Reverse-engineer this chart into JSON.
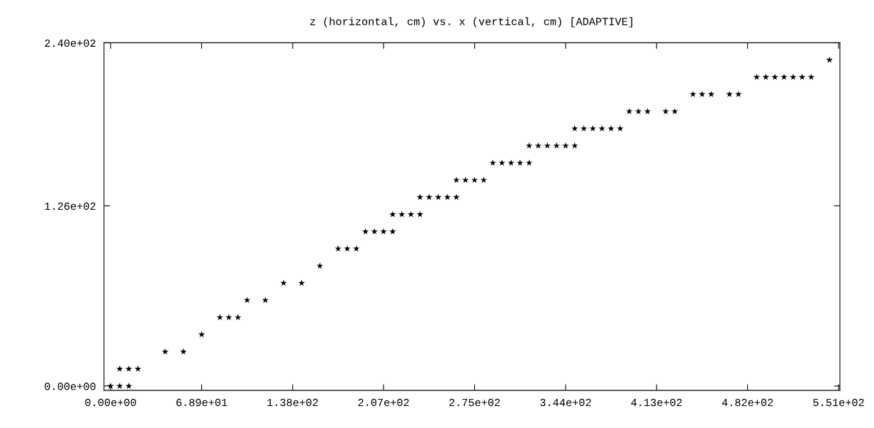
{
  "chart_data": {
    "type": "scatter",
    "title": "z (horizontal, cm) vs. x (vertical, cm) [ADAPTIVE]",
    "x": [
      0,
      6.9,
      13.8,
      6.9,
      13.8,
      20.7,
      41.3,
      55.1,
      68.9,
      82.7,
      89.5,
      96.4,
      103.3,
      117.1,
      130.9,
      144.6,
      158.4,
      172.2,
      179.1,
      186.0,
      192.9,
      199.7,
      206.6,
      213.5,
      213.5,
      220.4,
      227.3,
      234.2,
      234.2,
      241.1,
      248.0,
      254.9,
      261.7,
      261.7,
      268.6,
      275.5,
      282.4,
      289.3,
      296.2,
      303.1,
      309.9,
      316.8,
      316.8,
      323.7,
      330.6,
      337.5,
      344.4,
      351.3,
      351.3,
      358.2,
      365.0,
      371.9,
      378.8,
      385.7,
      392.6,
      399.5,
      406.4,
      420.1,
      427.0,
      440.8,
      447.7,
      454.6,
      468.4,
      475.2,
      489.0,
      495.9,
      502.8,
      509.7,
      516.6,
      523.4,
      530.3,
      544.1
    ],
    "values": [
      0,
      0,
      0,
      12,
      12,
      12,
      24,
      24,
      36,
      48,
      48,
      48,
      60,
      60,
      72,
      72,
      84,
      96,
      96,
      96,
      108,
      108,
      108,
      108,
      120,
      120,
      120,
      120,
      132,
      132,
      132,
      132,
      132,
      144,
      144,
      144,
      144,
      156,
      156,
      156,
      156,
      156,
      168,
      168,
      168,
      168,
      168,
      168,
      180,
      180,
      180,
      180,
      180,
      180,
      192,
      192,
      192,
      192,
      192,
      204,
      204,
      204,
      204,
      204,
      216,
      216,
      216,
      216,
      216,
      216,
      216,
      228
    ],
    "color": "#000000",
    "marker": "star",
    "grid": false,
    "xlim": [
      -5,
      552
    ],
    "ylim": [
      -3,
      240
    ],
    "xticks": [
      {
        "value": 0,
        "label": "0.00e+00"
      },
      {
        "value": 68.9,
        "label": "6.89e+01"
      },
      {
        "value": 137.75,
        "label": "1.38e+02"
      },
      {
        "value": 206.6,
        "label": "2.07e+02"
      },
      {
        "value": 275.5,
        "label": "2.75e+02"
      },
      {
        "value": 344.4,
        "label": "3.44e+02"
      },
      {
        "value": 413.25,
        "label": "4.13e+02"
      },
      {
        "value": 482.1,
        "label": "4.82e+02"
      },
      {
        "value": 551,
        "label": "5.51e+02"
      }
    ],
    "yticks": [
      {
        "value": 0,
        "label": "0.00e+00"
      },
      {
        "value": 126,
        "label": "1.26e+02"
      },
      {
        "value": 240,
        "label": "2.40e+02"
      }
    ]
  }
}
